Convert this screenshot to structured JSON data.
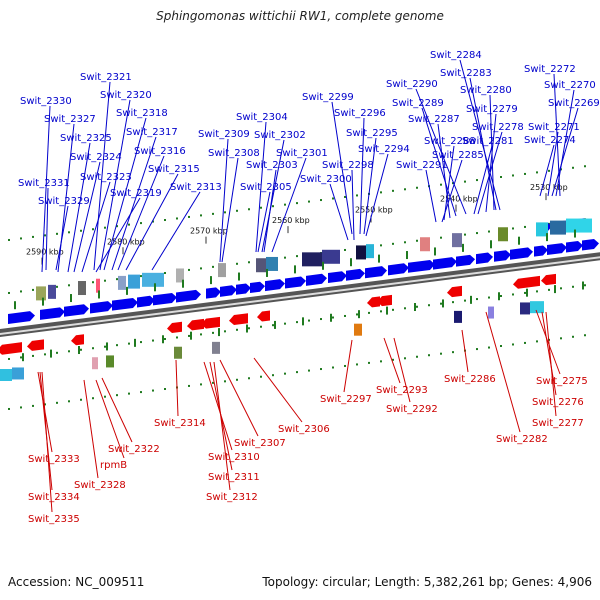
{
  "title": "Sphingomonas wittichii RW1, complete genome",
  "accession": "Accession: NC_009511",
  "summary": "Topology: circular; Length: 5,382,261 bp; Genes: 4,906",
  "colors": {
    "forward": "#0000ee",
    "reverse": "#ee0000",
    "axis_dark": "#555555",
    "axis_light": "#dddddd",
    "dots": "#1f7a1f",
    "label_forward": "#0000cc",
    "label_reverse": "#cc0000"
  },
  "scale_labels": [
    "2530 kbp",
    "2540 kbp",
    "2550 kbp",
    "2560 kbp",
    "2570 kbp",
    "2580 kbp",
    "2590 kbp"
  ],
  "forward_labels": [
    "Swit_2272",
    "Swit_2270",
    "Swit_2269",
    "Swit_2271",
    "Swit_2274",
    "Swit_2284",
    "Swit_2283",
    "Swit_2280",
    "Swit_2279",
    "Swit_2278",
    "Swit_2281",
    "Swit_2290",
    "Swit_2289",
    "Swit_2287",
    "Swit_2288",
    "Swit_2285",
    "Swit_2291",
    "Swit_2299",
    "Swit_2296",
    "Swit_2295",
    "Swit_2294",
    "Swit_2298",
    "Swit_2300",
    "Swit_2304",
    "Swit_2302",
    "Swit_2301",
    "Swit_2303",
    "Swit_2305",
    "Swit_2309",
    "Swit_2308",
    "Swit_2321",
    "Swit_2320",
    "Swit_2318",
    "Swit_2317",
    "Swit_2316",
    "Swit_2315",
    "Swit_2313",
    "Swit_2330",
    "Swit_2327",
    "Swit_2325",
    "Swit_2324",
    "Swit_2323",
    "Swit_2319",
    "Swit_2331",
    "Swit_2329"
  ],
  "reverse_labels": [
    "Swit_2333",
    "Swit_2334",
    "Swit_2335",
    "Swit_2328",
    "rpmB",
    "Swit_2322",
    "Swit_2314",
    "Swit_2310",
    "Swit_2311",
    "Swit_2312",
    "Swit_2307",
    "Swit_2306",
    "Swit_2297",
    "Swit_2293",
    "Swit_2292",
    "Swit_2286",
    "Swit_2282",
    "Swit_2275",
    "Swit_2276",
    "Swit_2277"
  ]
}
